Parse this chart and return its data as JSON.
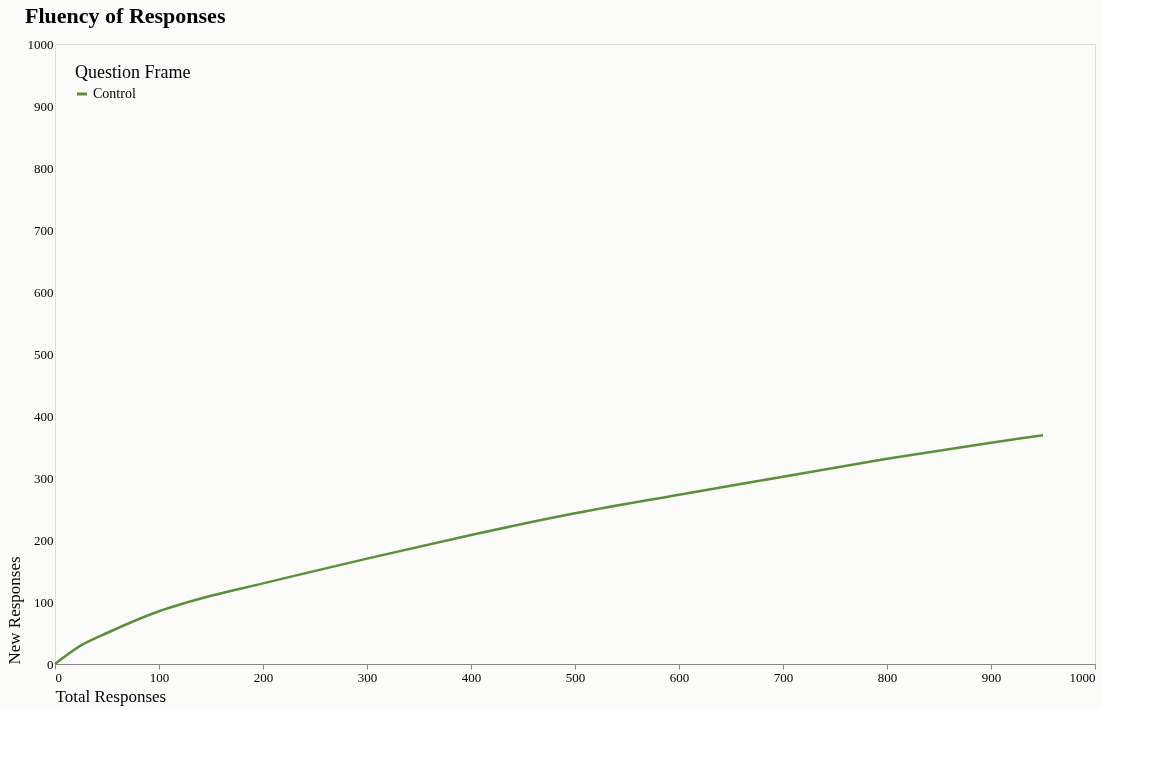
{
  "chart_data": {
    "type": "line",
    "title": "Fluency of Responses",
    "xlabel": "Total Responses",
    "ylabel": "New Responses",
    "legend_title": "Question Frame",
    "x": [
      0,
      25,
      50,
      100,
      150,
      200,
      300,
      400,
      500,
      600,
      700,
      800,
      900,
      950
    ],
    "series": [
      {
        "name": "Control",
        "color": "#5a8f3c",
        "values": [
          0,
          30,
          50,
          85,
          110,
          130,
          170,
          208,
          243,
          273,
          302,
          331,
          357,
          369
        ]
      }
    ],
    "xlim": [
      0,
      1000
    ],
    "ylim": [
      0,
      1000
    ],
    "xticks": [
      0,
      100,
      200,
      300,
      400,
      500,
      600,
      700,
      800,
      900,
      1000
    ],
    "yticks": [
      0,
      100,
      200,
      300,
      400,
      500,
      600,
      700,
      800,
      900,
      1000
    ],
    "grid": false,
    "legend": "top left",
    "marker": "none",
    "line_style": "solid"
  }
}
